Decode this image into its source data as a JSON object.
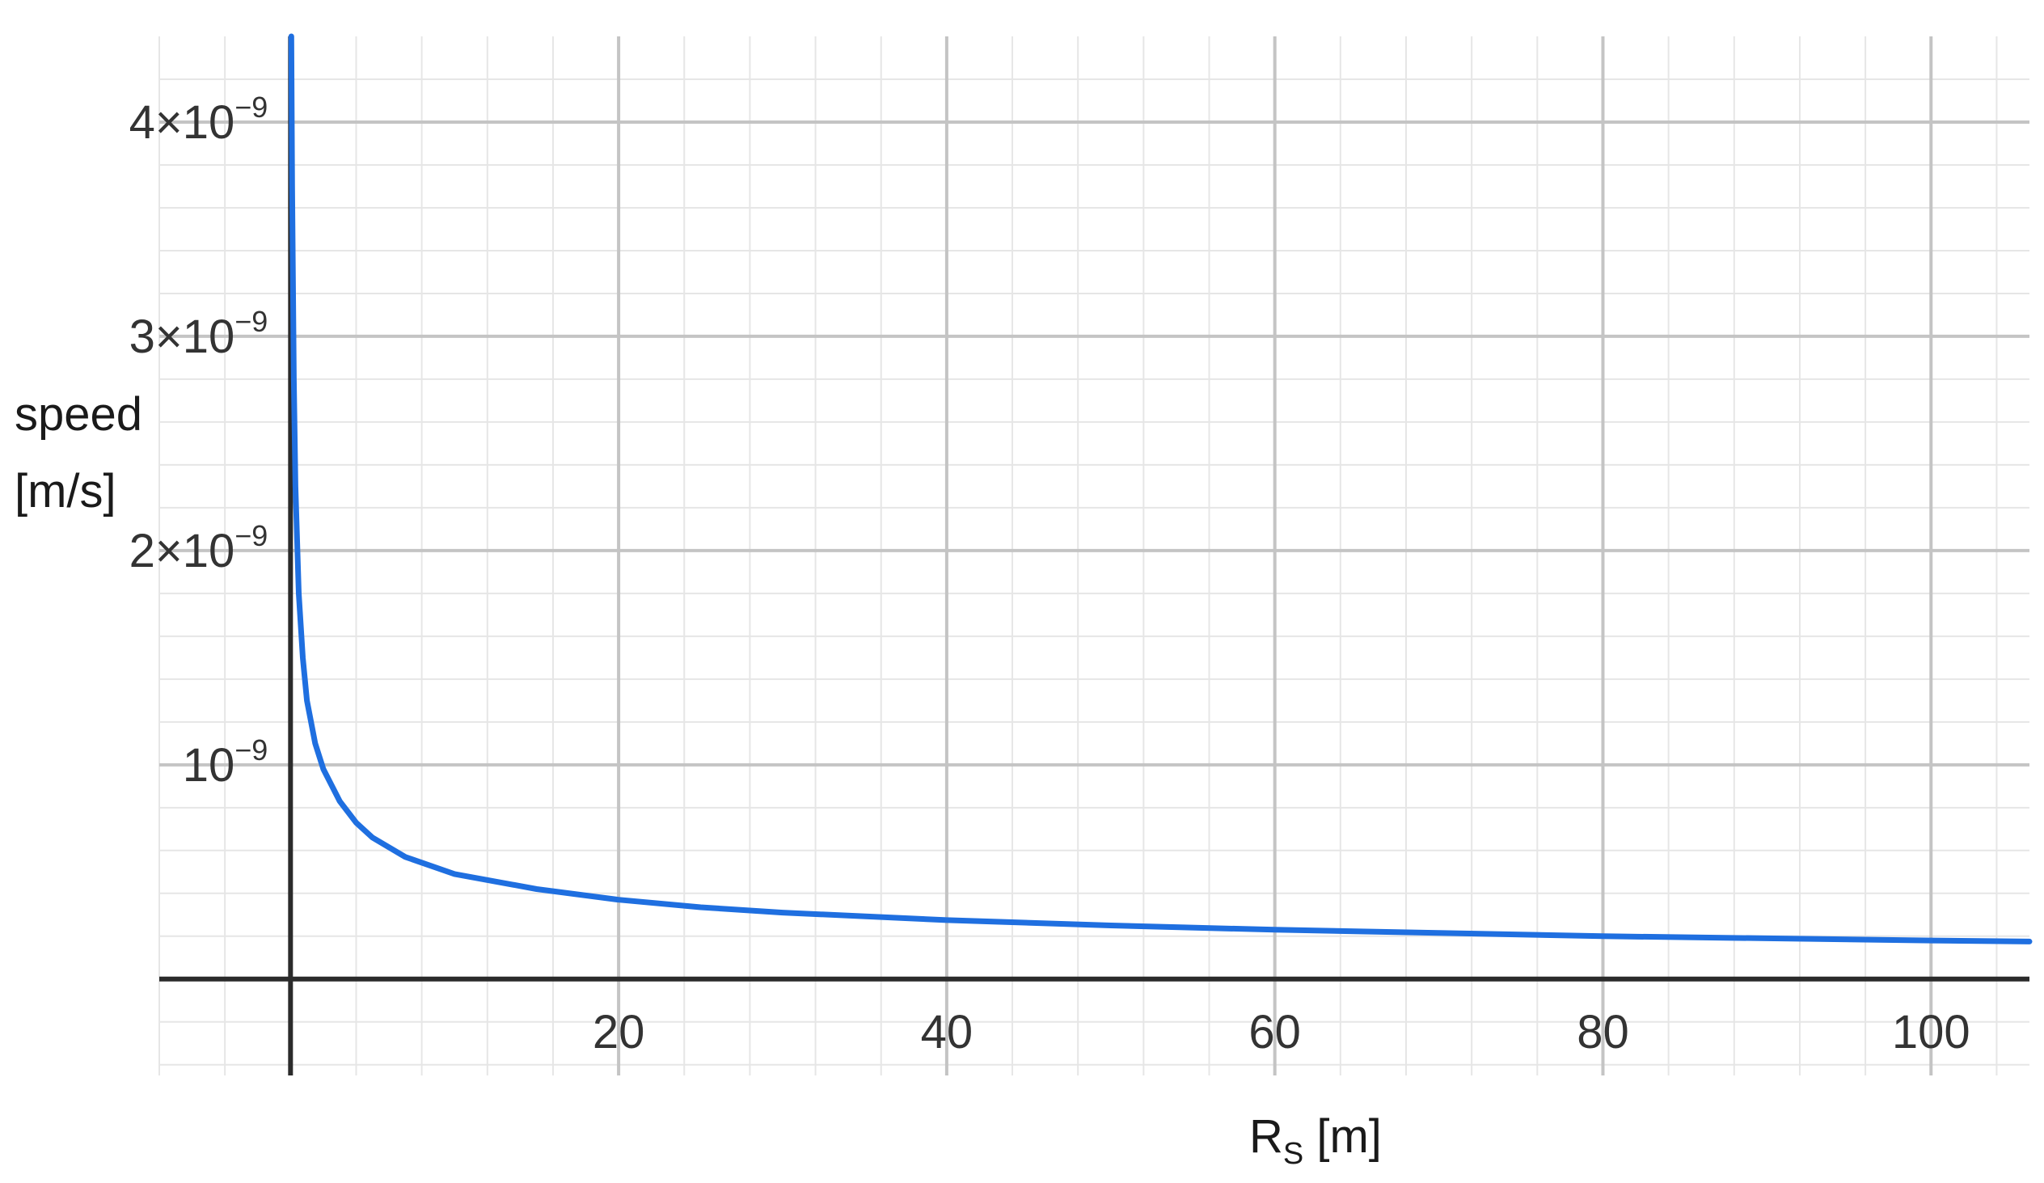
{
  "chart_data": {
    "type": "line",
    "title": "",
    "xlabel": "R",
    "xlabel_subscript": "S",
    "xlabel_unit": " [m]",
    "ylabel_line1": "speed",
    "ylabel_line2": "[m/s]",
    "xlim": [
      -8,
      106
    ],
    "ylim": [
      -4.5e-10,
      4.4e-09
    ],
    "x_ticks": [
      {
        "value": 20,
        "label": "20"
      },
      {
        "value": 40,
        "label": "40"
      },
      {
        "value": 60,
        "label": "60"
      },
      {
        "value": 80,
        "label": "80"
      },
      {
        "value": 100,
        "label": "100"
      }
    ],
    "y_ticks": [
      {
        "value": 1e-09,
        "mantissa": "",
        "base": "10",
        "exponent": "−9"
      },
      {
        "value": 2e-09,
        "mantissa": "2×",
        "base": "10",
        "exponent": "−9"
      },
      {
        "value": 3e-09,
        "mantissa": "3×",
        "base": "10",
        "exponent": "−9"
      },
      {
        "value": 4e-09,
        "mantissa": "4×",
        "base": "10",
        "exponent": "−9"
      }
    ],
    "grid": true,
    "series": [
      {
        "color": "#1f6fe0",
        "points": [
          [
            0.05,
            4.4e-09
          ],
          [
            0.1,
            3.7e-09
          ],
          [
            0.2,
            2.8e-09
          ],
          [
            0.3,
            2.3e-09
          ],
          [
            0.5,
            1.8e-09
          ],
          [
            0.75,
            1.5e-09
          ],
          [
            1,
            1.3e-09
          ],
          [
            1.5,
            1.1e-09
          ],
          [
            2,
            9.8e-10
          ],
          [
            3,
            8.3e-10
          ],
          [
            4,
            7.3e-10
          ],
          [
            5,
            6.6e-10
          ],
          [
            7,
            5.7e-10
          ],
          [
            10,
            4.9e-10
          ],
          [
            15,
            4.2e-10
          ],
          [
            20,
            3.7e-10
          ],
          [
            25,
            3.35e-10
          ],
          [
            30,
            3.1e-10
          ],
          [
            40,
            2.75e-10
          ],
          [
            50,
            2.5e-10
          ],
          [
            60,
            2.3e-10
          ],
          [
            70,
            2.15e-10
          ],
          [
            80,
            2e-10
          ],
          [
            90,
            1.9e-10
          ],
          [
            100,
            1.8e-10
          ],
          [
            106,
            1.75e-10
          ]
        ]
      }
    ]
  },
  "colors": {
    "curve": "#1f6fe0",
    "axis": "#2b2b2b",
    "major_grid": "#c4c4c4",
    "minor_grid": "#e6e6e6"
  }
}
